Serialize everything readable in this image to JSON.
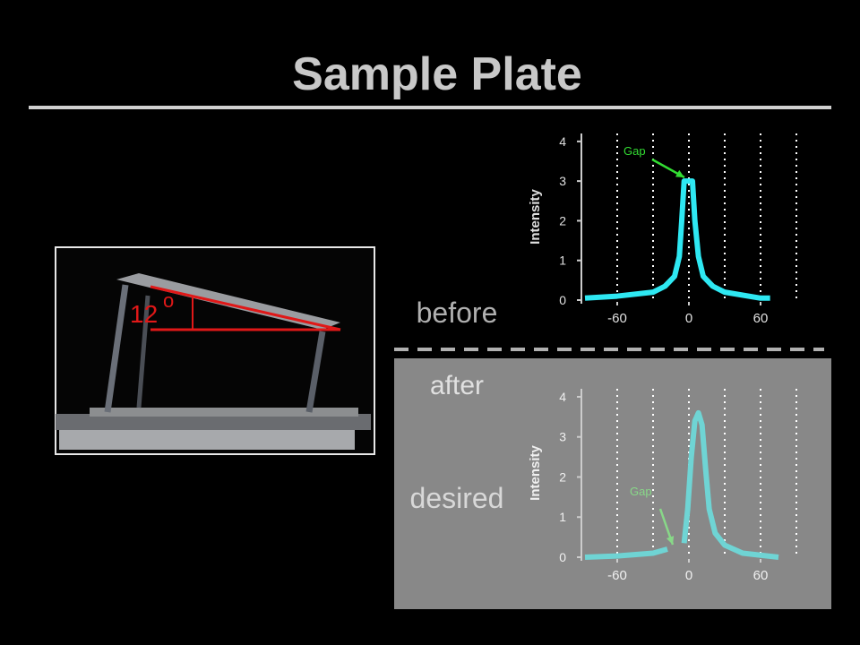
{
  "title": "Sample Plate",
  "labels": {
    "before": "before",
    "after": "after",
    "desired": "desired"
  },
  "photo": {
    "angle": "12",
    "degree_mark": "o"
  },
  "chart_data": [
    {
      "type": "line",
      "ylabel": "Intensity",
      "annotation": "Gap",
      "xlim": [
        -90,
        90
      ],
      "ylim": [
        0,
        4.2
      ],
      "xticks": [
        -60,
        0,
        60
      ],
      "yticks": [
        0,
        1,
        2,
        3,
        4
      ],
      "grid": true,
      "xgrid": [
        -60,
        -30,
        0,
        30,
        60,
        90
      ],
      "series": [
        {
          "color": "#2ee8f2",
          "x": [
            -87,
            -60,
            -30,
            -20,
            -12,
            -8,
            -6,
            -4,
            3,
            5,
            8,
            12,
            20,
            30,
            60,
            68
          ],
          "values": [
            0.05,
            0.1,
            0.2,
            0.35,
            0.6,
            1.1,
            2,
            3,
            3,
            2,
            1.1,
            0.6,
            0.35,
            0.2,
            0.05,
            0.05
          ]
        }
      ]
    },
    {
      "type": "line",
      "ylabel": "Intensity",
      "annotation": "Gap",
      "xlim": [
        -90,
        90
      ],
      "ylim": [
        0,
        4.2
      ],
      "xticks": [
        -60,
        0,
        60
      ],
      "yticks": [
        0,
        1,
        2,
        3,
        4
      ],
      "grid": true,
      "xgrid": [
        -60,
        -30,
        0,
        30,
        60,
        90
      ],
      "series": [
        {
          "color": "#6fd4d4",
          "x": [
            -87,
            -60,
            -30,
            -18,
            -10,
            -4,
            -1,
            2,
            5,
            8,
            11,
            14,
            17,
            22,
            30,
            45,
            75
          ],
          "values": [
            0,
            0.03,
            0.1,
            0.2,
            null,
            0.35,
            1.2,
            2.5,
            3.4,
            3.6,
            3.3,
            2.2,
            1.2,
            0.6,
            0.3,
            0.1,
            0
          ]
        }
      ]
    }
  ]
}
